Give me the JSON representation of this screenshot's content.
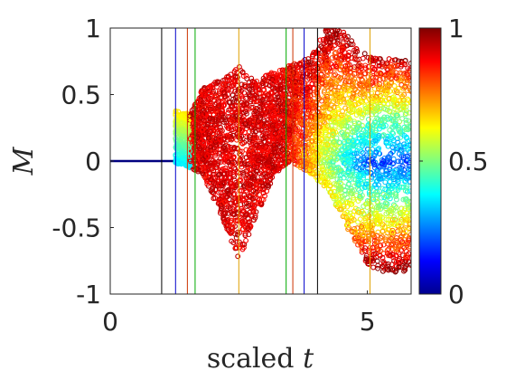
{
  "chart_data": {
    "type": "scatter",
    "xlabel_text": "scaled",
    "xlabel_var": "t",
    "ylabel": "M",
    "xlim": [
      0,
      5.85
    ],
    "ylim": [
      -1,
      1
    ],
    "xticks": [
      {
        "v": 0,
        "label": "0"
      },
      {
        "v": 5,
        "label": "5"
      }
    ],
    "yticks": [
      {
        "v": 1,
        "label": "1"
      },
      {
        "v": 0.5,
        "label": "0.5"
      },
      {
        "v": 0,
        "label": "0"
      },
      {
        "v": -0.5,
        "label": "-0.5"
      },
      {
        "v": -1,
        "label": "-1"
      }
    ],
    "colorbar": {
      "colormap": "jet",
      "range": [
        0,
        1
      ],
      "ticks": [
        {
          "v": 1,
          "label": "1"
        },
        {
          "v": 0.5,
          "label": "0.5"
        },
        {
          "v": 0,
          "label": "0"
        }
      ]
    },
    "vertical_lines": [
      {
        "x": 1.0,
        "color": "#000000"
      },
      {
        "x": 1.27,
        "color": "#0000cc"
      },
      {
        "x": 1.5,
        "color": "#cc3300"
      },
      {
        "x": 1.65,
        "color": "#00aa00"
      },
      {
        "x": 2.5,
        "color": "#e0a000"
      },
      {
        "x": 3.42,
        "color": "#00aa00"
      },
      {
        "x": 3.55,
        "color": "#cc3300"
      },
      {
        "x": 3.77,
        "color": "#0000cc"
      },
      {
        "x": 4.03,
        "color": "#000000"
      },
      {
        "x": 5.05,
        "color": "#e0a000"
      }
    ],
    "envelope": {
      "description_free": true,
      "flat_segment": {
        "x": [
          0,
          1.27
        ],
        "y": 0,
        "color_value": 0.0
      },
      "upper": [
        [
          1.27,
          0.38
        ],
        [
          1.55,
          0.35
        ],
        [
          1.8,
          0.55
        ],
        [
          2.2,
          0.62
        ],
        [
          2.5,
          0.72
        ],
        [
          2.8,
          0.6
        ],
        [
          3.2,
          0.68
        ],
        [
          3.5,
          0.72
        ],
        [
          3.9,
          0.78
        ],
        [
          4.2,
          1.0
        ],
        [
          4.5,
          1.0
        ],
        [
          4.8,
          0.85
        ],
        [
          5.2,
          0.78
        ],
        [
          5.85,
          0.75
        ]
      ],
      "lower": [
        [
          1.27,
          -0.02
        ],
        [
          1.55,
          -0.05
        ],
        [
          1.8,
          -0.1
        ],
        [
          2.2,
          -0.45
        ],
        [
          2.5,
          -0.75
        ],
        [
          2.8,
          -0.45
        ],
        [
          3.2,
          -0.1
        ],
        [
          3.5,
          0.0
        ],
        [
          3.9,
          -0.1
        ],
        [
          4.2,
          -0.2
        ],
        [
          4.6,
          -0.5
        ],
        [
          5.0,
          -0.78
        ],
        [
          5.4,
          -0.85
        ],
        [
          5.85,
          -0.82
        ]
      ]
    }
  }
}
